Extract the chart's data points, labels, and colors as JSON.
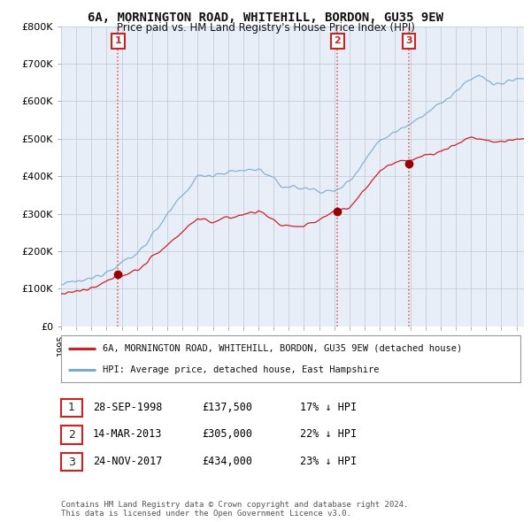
{
  "title": "6A, MORNINGTON ROAD, WHITEHILL, BORDON, GU35 9EW",
  "subtitle": "Price paid vs. HM Land Registry's House Price Index (HPI)",
  "xmin": 1995.0,
  "xmax": 2025.5,
  "ymin": 0,
  "ymax": 800000,
  "yticks": [
    0,
    100000,
    200000,
    300000,
    400000,
    500000,
    600000,
    700000,
    800000
  ],
  "ytick_labels": [
    "£0",
    "£100K",
    "£200K",
    "£300K",
    "£400K",
    "£500K",
    "£600K",
    "£700K",
    "£800K"
  ],
  "sale_dates": [
    1998.75,
    2013.21,
    2017.9
  ],
  "sale_prices": [
    137500,
    305000,
    434000
  ],
  "sale_labels": [
    "1",
    "2",
    "3"
  ],
  "vline_color": "#dd3333",
  "red_line_color": "#cc2222",
  "blue_line_color": "#7aabcf",
  "legend_label_red": "6A, MORNINGTON ROAD, WHITEHILL, BORDON, GU35 9EW (detached house)",
  "legend_label_blue": "HPI: Average price, detached house, East Hampshire",
  "table_rows": [
    {
      "num": "1",
      "date": "28-SEP-1998",
      "price": "£137,500",
      "hpi": "17% ↓ HPI"
    },
    {
      "num": "2",
      "date": "14-MAR-2013",
      "price": "£305,000",
      "hpi": "22% ↓ HPI"
    },
    {
      "num": "3",
      "date": "24-NOV-2017",
      "price": "£434,000",
      "hpi": "23% ↓ HPI"
    }
  ],
  "footnote": "Contains HM Land Registry data © Crown copyright and database right 2024.\nThis data is licensed under the Open Government Licence v3.0.",
  "bg_color": "#ffffff",
  "plot_bg_color": "#e8eef8",
  "grid_color": "#c8ccd8"
}
